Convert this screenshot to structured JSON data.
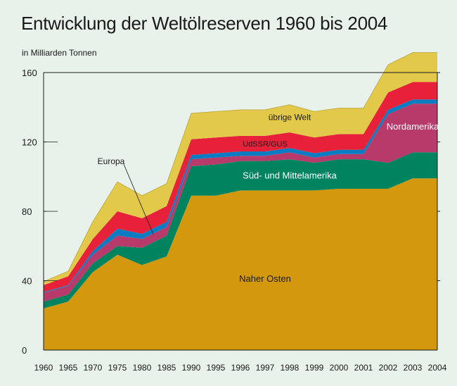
{
  "chart_data": {
    "type": "area",
    "title": "Entwicklung der Weltölreserven 1960 bis 2004",
    "unit_label": "in Milliarden Tonnen",
    "categories": [
      "1960",
      "1965",
      "1970",
      "1975",
      "1980",
      "1985",
      "1990",
      "1995",
      "1996",
      "1997",
      "1998",
      "1999",
      "2000",
      "2001",
      "2002",
      "2003",
      "2004"
    ],
    "ylim": [
      0,
      160
    ],
    "y_ticks": [
      "0",
      "40",
      "80",
      "120",
      "160"
    ],
    "stacked": true,
    "series": [
      {
        "name": "Naher Osten",
        "color": "#d4980f",
        "values": [
          24,
          28,
          45,
          55,
          49,
          54,
          89,
          89,
          92,
          92,
          92,
          92,
          93,
          93,
          93,
          99,
          99
        ]
      },
      {
        "name": "Süd- und Mittelamerika",
        "color": "#00845f",
        "values": [
          4,
          4,
          5,
          5,
          10,
          12,
          17,
          18,
          17,
          17,
          18,
          16,
          17,
          17,
          15,
          15,
          15
        ]
      },
      {
        "name": "Nordamerika",
        "color": "#b83a6a",
        "values": [
          5,
          5,
          5,
          6,
          5,
          5,
          4,
          4,
          3,
          3,
          4,
          3,
          3,
          3,
          28,
          28,
          28
        ]
      },
      {
        "name": "Europa",
        "color": "#0c7cc2",
        "values": [
          0.5,
          0.5,
          2,
          4,
          3,
          3,
          2.5,
          2.5,
          2.5,
          2.5,
          2.5,
          2.5,
          2.5,
          2.5,
          2.5,
          2.5,
          2.5
        ]
      },
      {
        "name": "UdSSR/GUS",
        "color": "#e8213a",
        "values": [
          4,
          5,
          7,
          10,
          9,
          9,
          9,
          9,
          9,
          9,
          9,
          9,
          9,
          9,
          10,
          10,
          10
        ]
      },
      {
        "name": "übrige Welt",
        "color": "#e2c94a",
        "values": [
          2,
          3,
          10,
          17,
          13,
          13,
          15,
          15,
          15,
          15,
          16,
          15,
          15,
          15,
          16,
          17,
          17
        ]
      }
    ],
    "label_color": "#1a1a1a",
    "label_color_inverse": "#ffffff",
    "background": "#e8f1ea",
    "grid": false
  }
}
